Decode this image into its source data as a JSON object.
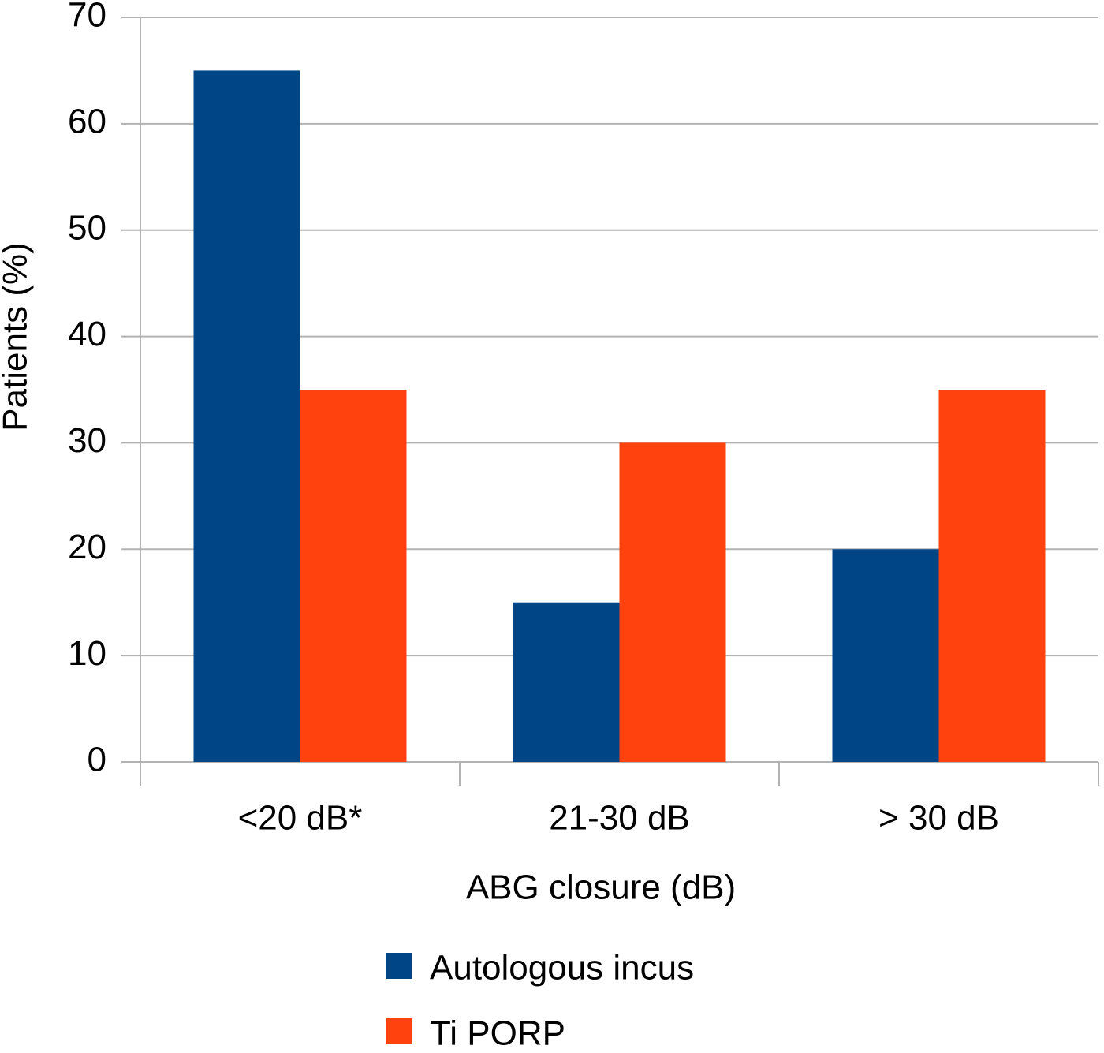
{
  "chart_data": {
    "type": "bar",
    "x_label": "ABG closure (dB)",
    "y_label": "Patients (%)",
    "categories": [
      "<20 dB*",
      "21-30 dB",
      "> 30 dB"
    ],
    "series": [
      {
        "name": "Autologous incus",
        "color": "#004586",
        "values": [
          65,
          15,
          20
        ]
      },
      {
        "name": "Ti PORP",
        "color": "#ff420e",
        "values": [
          35,
          30,
          35
        ]
      }
    ],
    "ylim": [
      0,
      70
    ],
    "yticks": [
      0,
      10,
      20,
      30,
      40,
      50,
      60,
      70
    ],
    "grid": true
  }
}
